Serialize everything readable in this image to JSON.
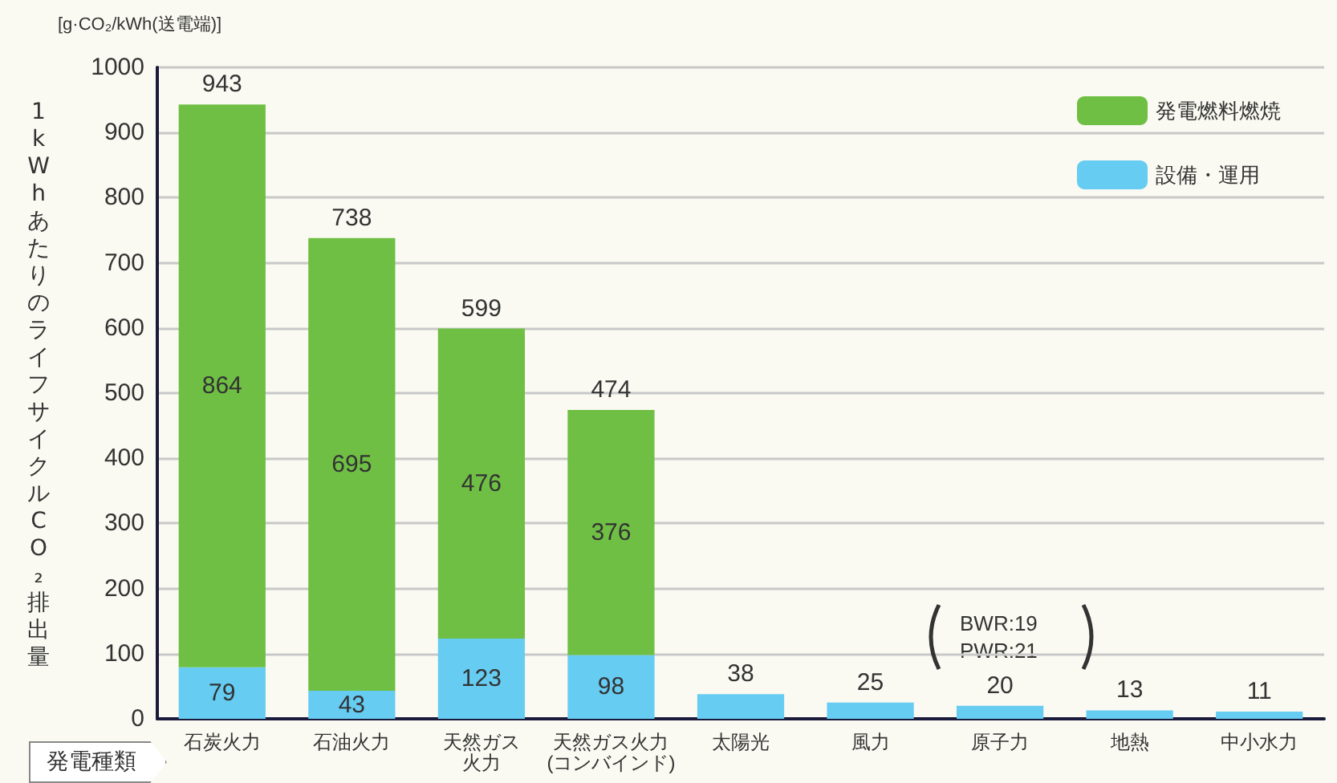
{
  "chart_data": {
    "type": "bar",
    "stacked": true,
    "ylabel": "1kWhあたりのライフサイクルCO₂排出量",
    "xlabel": "発電種類",
    "annotations": [
      "[g·CO₂/kWh(送電端)]",
      "BWR:19\nPWR:21"
    ],
    "categories": [
      "石炭火力",
      "石油火力",
      "天然ガス火力",
      "天然ガス火力(コンバインド)",
      "太陽光",
      "風力",
      "原子力",
      "地熱",
      "中小水力"
    ],
    "series": [
      {
        "name": "設備・運用",
        "color": "#66ccf2",
        "values": [
          79,
          43,
          123,
          98,
          38,
          25,
          20,
          13,
          11
        ]
      },
      {
        "name": "発電燃料燃焼",
        "color": "#6fbf44",
        "values": [
          864,
          695,
          476,
          376,
          null,
          null,
          null,
          null,
          null
        ]
      }
    ],
    "totals": [
      "943",
      "738",
      "599",
      "474",
      null,
      null,
      null,
      null,
      null
    ],
    "data_labels": true,
    "ylim": [
      0,
      1000
    ],
    "yticks": [
      0,
      100,
      200,
      300,
      400,
      500,
      600,
      700,
      800,
      900,
      {
        "value": 1000,
        "label": "1000"
      }
    ],
    "grid": "y",
    "legend": "top right"
  }
}
